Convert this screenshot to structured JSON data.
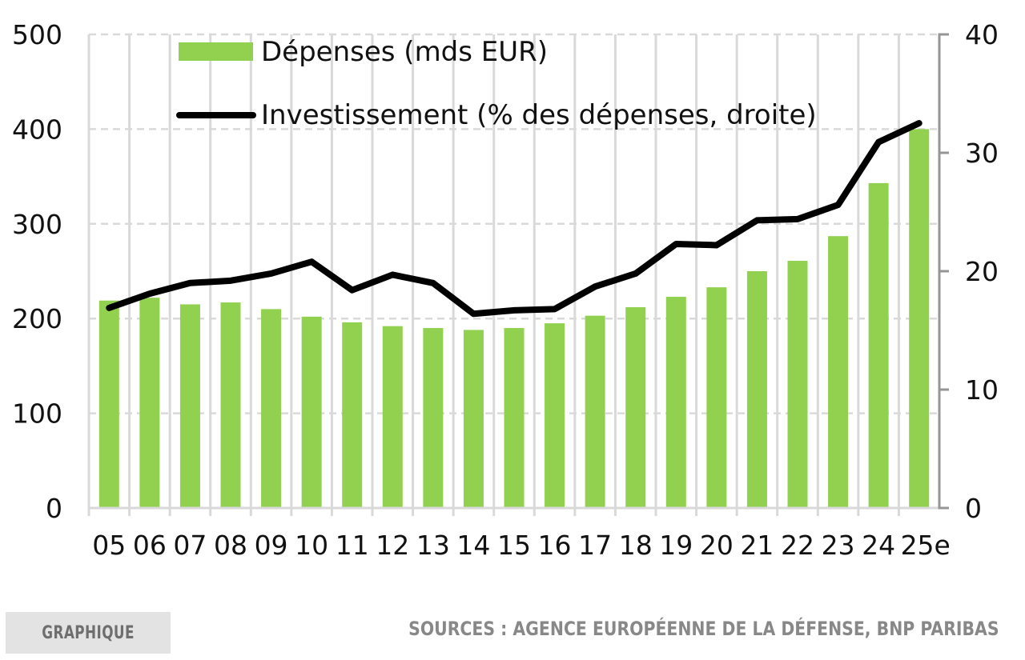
{
  "chart_data": {
    "type": "bar+line",
    "title": "",
    "categories": [
      "05",
      "06",
      "07",
      "08",
      "09",
      "10",
      "11",
      "12",
      "13",
      "14",
      "15",
      "16",
      "17",
      "18",
      "19",
      "20",
      "21",
      "22",
      "23",
      "24",
      "25e"
    ],
    "series": [
      {
        "name": "Dépenses (mds EUR)",
        "type": "bar",
        "axis": "left",
        "color": "#92d050",
        "values": [
          219,
          222,
          215,
          217,
          210,
          202,
          196,
          192,
          190,
          188,
          190,
          195,
          203,
          212,
          223,
          233,
          250,
          261,
          287,
          343,
          400
        ]
      },
      {
        "name": "Investissement (% des dépenses, droite)",
        "type": "line",
        "axis": "right",
        "color": "#000000",
        "values": [
          16.9,
          18.1,
          19.0,
          19.2,
          19.8,
          20.8,
          18.4,
          19.7,
          19.0,
          16.4,
          16.7,
          16.8,
          18.7,
          19.8,
          22.3,
          22.2,
          24.3,
          24.4,
          25.6,
          30.9,
          32.5
        ]
      }
    ],
    "y_left": {
      "min": 0,
      "max": 500,
      "ticks": [
        0,
        100,
        200,
        300,
        400,
        500
      ],
      "label": ""
    },
    "y_right": {
      "min": 0,
      "max": 40,
      "ticks": [
        0,
        10,
        20,
        30,
        40
      ],
      "label": ""
    },
    "xlabel": "",
    "grid": true,
    "legend_position": "top-left inside"
  },
  "footer": {
    "tag": "GRAPHIQUE",
    "sources": "SOURCES : AGENCE EUROPÉENNE DE LA DÉFENSE, BNP PARIBAS"
  }
}
